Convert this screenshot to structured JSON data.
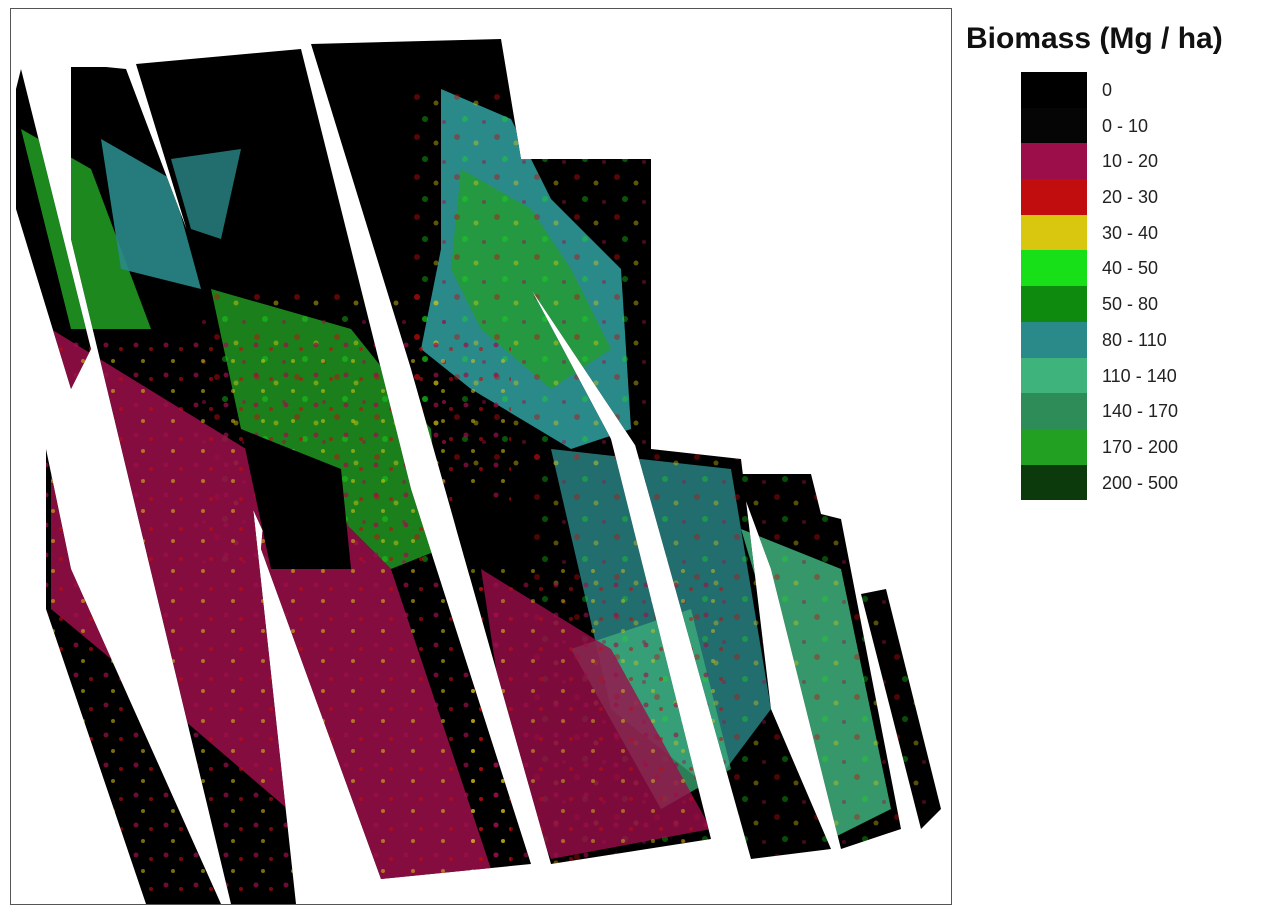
{
  "legend": {
    "title": "Biomass (Mg / ha)",
    "classes": [
      {
        "label": "0",
        "color": "#000000"
      },
      {
        "label": "0 - 10",
        "color": "#050505"
      },
      {
        "label": "10 - 20",
        "color": "#9b0e4a"
      },
      {
        "label": "20 - 30",
        "color": "#c10d0d"
      },
      {
        "label": "30 - 40",
        "color": "#d9c60e"
      },
      {
        "label": "40 - 50",
        "color": "#18e018"
      },
      {
        "label": "50 - 80",
        "color": "#0e8a0e"
      },
      {
        "label": "80 - 110",
        "color": "#2a8a8a"
      },
      {
        "label": "110 - 140",
        "color": "#3fb37c"
      },
      {
        "label": "140 - 170",
        "color": "#2e8c58"
      },
      {
        "label": "170 - 200",
        "color": "#22a022"
      },
      {
        "label": "200 - 500",
        "color": "#0c3a0c"
      }
    ]
  }
}
